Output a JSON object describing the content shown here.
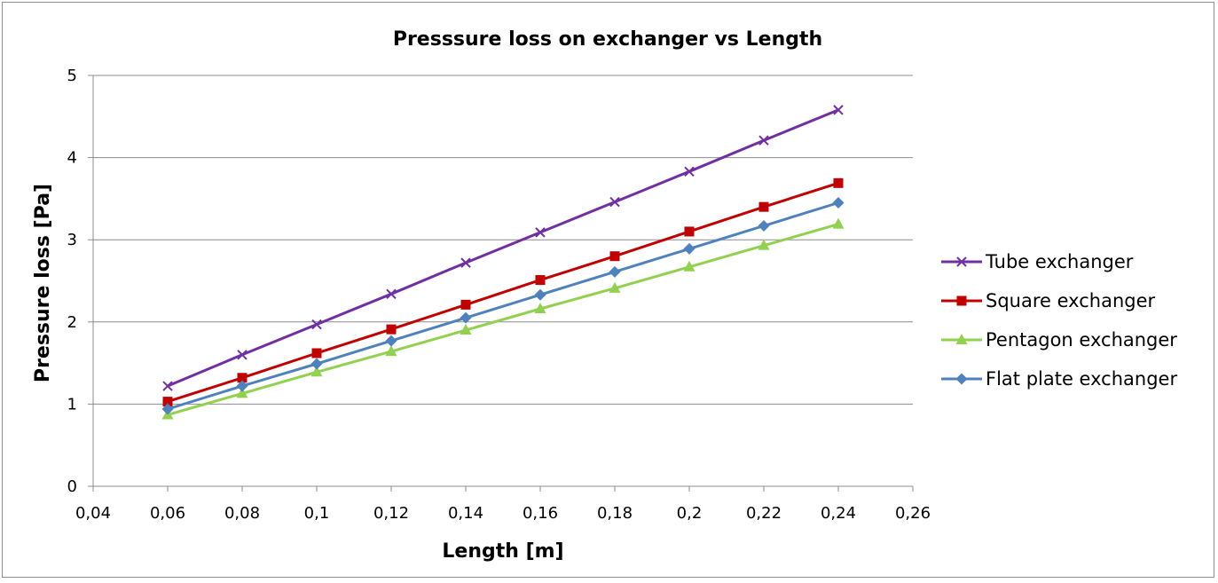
{
  "chart_data": {
    "type": "line",
    "title": "Presssure loss on exchanger vs Length",
    "xlabel": "Length [m]",
    "ylabel": "Pressure loss [Pa]",
    "xlim": [
      0.04,
      0.26
    ],
    "ylim": [
      0,
      5
    ],
    "x_ticks": [
      "0,04",
      "0,06",
      "0,08",
      "0,1",
      "0,12",
      "0,14",
      "0,16",
      "0,18",
      "0,2",
      "0,22",
      "0,24",
      "0,26"
    ],
    "y_ticks": [
      "0",
      "1",
      "2",
      "3",
      "4",
      "5"
    ],
    "grid": "horizontal",
    "legend_position": "right",
    "x": [
      0.06,
      0.08,
      0.1,
      0.12,
      0.14,
      0.16,
      0.18,
      0.2,
      0.22,
      0.24
    ],
    "series": [
      {
        "name": "Tube exchanger",
        "color": "#7030a0",
        "marker": "x",
        "values": [
          1.22,
          1.6,
          1.97,
          2.34,
          2.72,
          3.09,
          3.46,
          3.83,
          4.21,
          4.58
        ]
      },
      {
        "name": "Square exchanger",
        "color": "#c00000",
        "marker": "square",
        "values": [
          1.03,
          1.32,
          1.62,
          1.91,
          2.21,
          2.51,
          2.8,
          3.1,
          3.4,
          3.69
        ]
      },
      {
        "name": "Pentagon exchanger",
        "color": "#92d050",
        "marker": "triangle",
        "values": [
          0.87,
          1.13,
          1.39,
          1.64,
          1.9,
          2.16,
          2.41,
          2.67,
          2.93,
          3.19
        ]
      },
      {
        "name": "Flat plate exchanger",
        "color": "#4f81bd",
        "marker": "diamond",
        "values": [
          0.94,
          1.22,
          1.49,
          1.77,
          2.05,
          2.33,
          2.61,
          2.89,
          3.17,
          3.45
        ]
      }
    ]
  }
}
